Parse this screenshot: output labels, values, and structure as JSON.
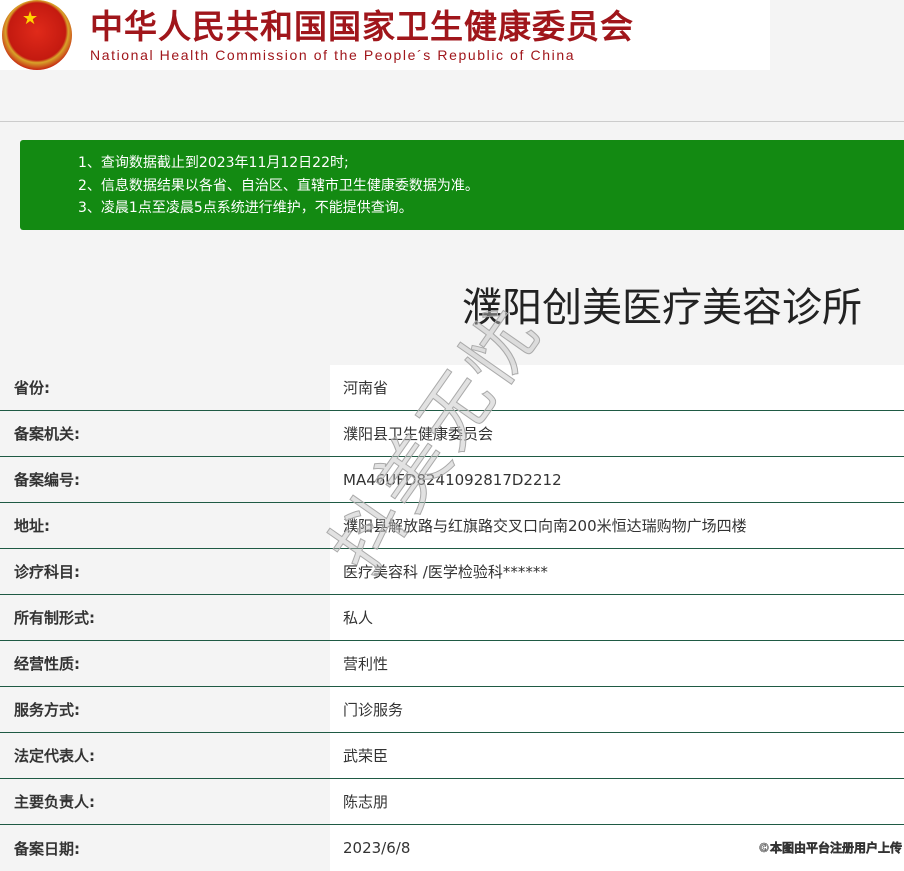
{
  "header": {
    "title_cn": "中华人民共和国国家卫生健康委员会",
    "title_en": "National Health Commission of the People´s Republic of China"
  },
  "notice": [
    "1、查询数据截止到2023年11月12日22时;",
    "2、信息数据结果以各省、自治区、直辖市卫生健康委数据为准。",
    "3、凌晨1点至凌晨5点系统进行维护，不能提供查询。"
  ],
  "org_name": "濮阳创美医疗美容诊所",
  "rows": [
    {
      "label": "省份:",
      "value": "河南省"
    },
    {
      "label": "备案机关:",
      "value": "濮阳县卫生健康委员会"
    },
    {
      "label": "备案编号:",
      "value": "MA46UFD8241092817D2212"
    },
    {
      "label": "地址:",
      "value": "濮阳县解放路与红旗路交叉口向南200米恒达瑞购物广场四楼"
    },
    {
      "label": "诊疗科目:",
      "value": "医疗美容科 /医学检验科******"
    },
    {
      "label": "所有制形式:",
      "value": "私人"
    },
    {
      "label": "经营性质:",
      "value": "营利性"
    },
    {
      "label": "服务方式:",
      "value": "门诊服务"
    },
    {
      "label": "法定代表人:",
      "value": "武荣臣"
    },
    {
      "label": "主要负责人:",
      "value": "陈志朋"
    },
    {
      "label": "备案日期:",
      "value": "2023/6/8"
    }
  ],
  "watermark": "抖美无忧",
  "credit": "©本图由平台注册用户上传"
}
